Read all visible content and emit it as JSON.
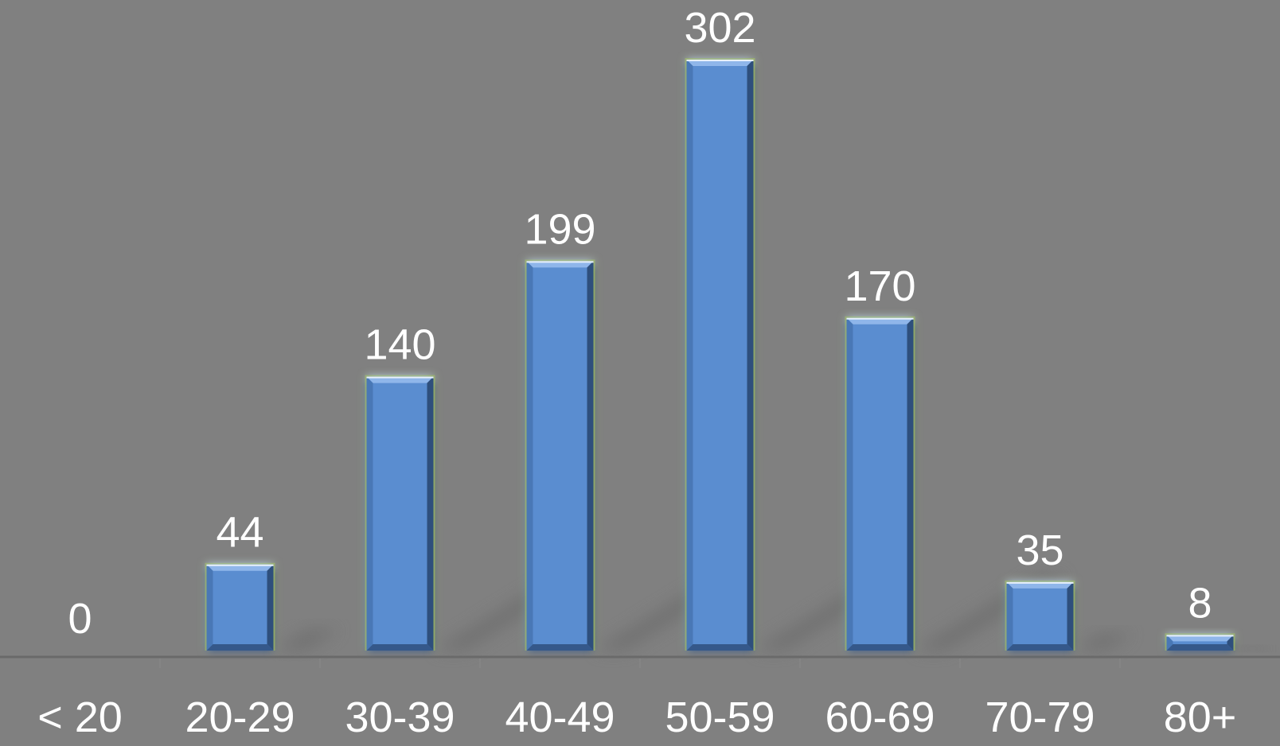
{
  "chart_data": {
    "type": "bar",
    "categories": [
      "< 20",
      "20-29",
      "30-39",
      "40-49",
      "50-59",
      "60-69",
      "70-79",
      "80+"
    ],
    "values": [
      0,
      44,
      140,
      199,
      302,
      170,
      35,
      8
    ],
    "data_labels": [
      "0",
      "44",
      "140",
      "199",
      "302",
      "170",
      "35",
      "8"
    ],
    "title": "",
    "xlabel": "",
    "ylabel": "",
    "ylim": [
      0,
      302
    ],
    "grid": false,
    "legend": "none",
    "colors": {
      "background": "#808080",
      "bar_face": "#5a8dd0",
      "bar_bevel_light": "#8fb6ea",
      "bar_bevel_dark": "#2f4f7c",
      "bar_glow": "#a8c653",
      "label": "#ffffff",
      "baseline": "#6a6a6a",
      "shadow": "#6e6e6e"
    }
  }
}
